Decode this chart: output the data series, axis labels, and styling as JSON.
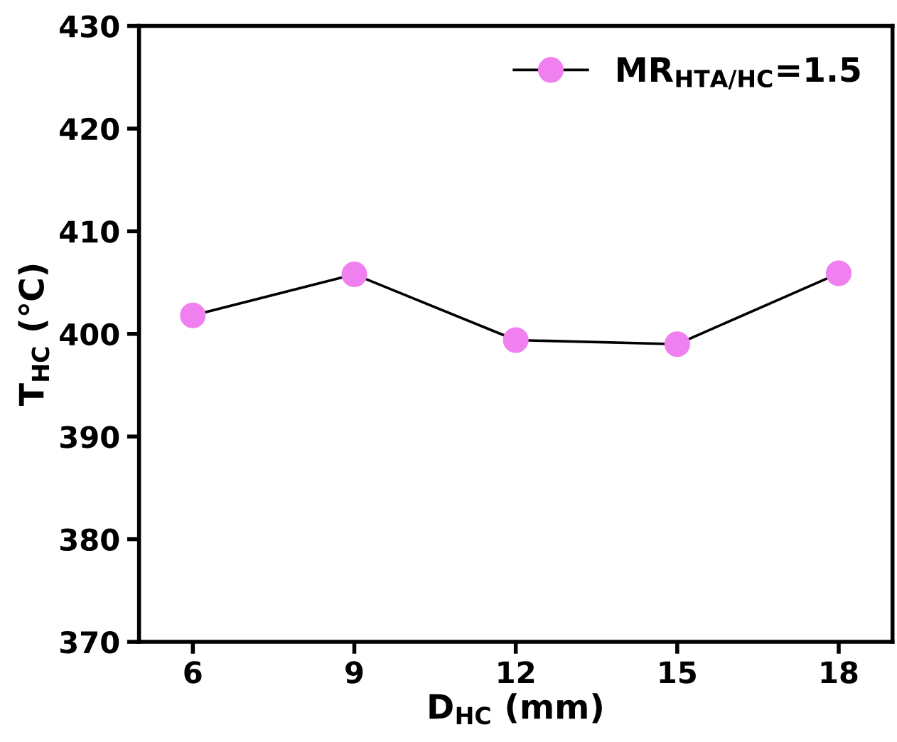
{
  "chart_data": {
    "type": "line",
    "xlabel": "D$_{HC}$ (mm)",
    "ylabel": "T$_{HC}$ (℃)",
    "x": [
      6,
      9,
      12,
      15,
      18
    ],
    "series": [
      {
        "name": "MR$_{HTA/HC}$=1.5",
        "color": "#f080f0",
        "values": [
          401.8,
          405.8,
          399.4,
          399.0,
          405.9
        ]
      }
    ],
    "xlim": [
      5,
      19
    ],
    "xticks": [
      6,
      9,
      12,
      15,
      18
    ],
    "ylim": [
      370,
      430
    ],
    "yticks": [
      370,
      380,
      390,
      400,
      410,
      420,
      430
    ],
    "marker": "circle",
    "line_style": "solid",
    "legend": "top right",
    "grid": false
  }
}
